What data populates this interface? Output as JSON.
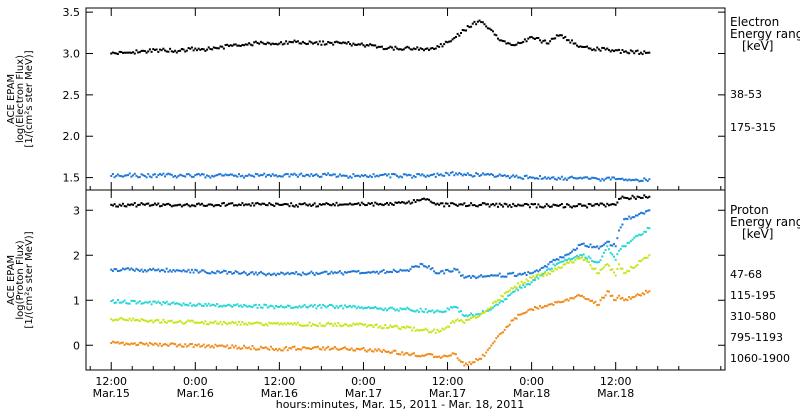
{
  "chart_data": [
    {
      "type": "scatter",
      "panel": "electron",
      "ylabel_lines": [
        "ACE EPAM",
        "log(Electron Flux)",
        "[1/(cm²s ster MeV)]"
      ],
      "legend_title_lines": [
        "Electron",
        "Energy ranges",
        "[keV]"
      ],
      "legend_placement": "right",
      "ylim": [
        1.35,
        3.55
      ],
      "yticks": [
        1.5,
        2.0,
        2.5,
        3.0,
        3.5
      ],
      "ytick_labels": [
        "1.5",
        "2.0",
        "2.5",
        "3.0",
        "3.5"
      ],
      "series": [
        {
          "name": "38-53",
          "color": "#000000",
          "points": [
            [
              0.0,
              3.0
            ],
            [
              0.1,
              3.01
            ],
            [
              0.2,
              3.03
            ],
            [
              0.3,
              3.04
            ],
            [
              0.4,
              3.03
            ],
            [
              0.5,
              3.06
            ],
            [
              0.6,
              3.05
            ],
            [
              0.7,
              3.09
            ],
            [
              0.8,
              3.11
            ],
            [
              0.9,
              3.13
            ],
            [
              1.0,
              3.12
            ],
            [
              1.1,
              3.14
            ],
            [
              1.2,
              3.12
            ],
            [
              1.3,
              3.13
            ],
            [
              1.4,
              3.12
            ],
            [
              1.5,
              3.1
            ],
            [
              1.6,
              3.08
            ],
            [
              1.7,
              3.06
            ],
            [
              1.8,
              3.06
            ],
            [
              1.9,
              3.06
            ],
            [
              1.95,
              3.08
            ],
            [
              2.05,
              3.2
            ],
            [
              2.1,
              3.28
            ],
            [
              2.15,
              3.36
            ],
            [
              2.2,
              3.38
            ],
            [
              2.25,
              3.3
            ],
            [
              2.3,
              3.18
            ],
            [
              2.35,
              3.12
            ],
            [
              2.4,
              3.1
            ],
            [
              2.45,
              3.14
            ],
            [
              2.5,
              3.2
            ],
            [
              2.55,
              3.16
            ],
            [
              2.6,
              3.12
            ],
            [
              2.65,
              3.22
            ],
            [
              2.7,
              3.2
            ],
            [
              2.75,
              3.12
            ],
            [
              2.8,
              3.08
            ],
            [
              2.85,
              3.06
            ],
            [
              2.9,
              3.05
            ],
            [
              3.0,
              3.04
            ],
            [
              3.05,
              3.02
            ],
            [
              3.2,
              3.01
            ]
          ]
        },
        {
          "name": "175-315",
          "color": "#1f78d6",
          "points": [
            [
              0.0,
              1.52
            ],
            [
              0.1,
              1.53
            ],
            [
              0.2,
              1.52
            ],
            [
              0.3,
              1.53
            ],
            [
              0.4,
              1.52
            ],
            [
              0.5,
              1.53
            ],
            [
              0.6,
              1.52
            ],
            [
              0.7,
              1.53
            ],
            [
              0.8,
              1.52
            ],
            [
              0.9,
              1.53
            ],
            [
              1.0,
              1.52
            ],
            [
              1.1,
              1.53
            ],
            [
              1.2,
              1.52
            ],
            [
              1.3,
              1.53
            ],
            [
              1.4,
              1.52
            ],
            [
              1.5,
              1.52
            ],
            [
              1.6,
              1.53
            ],
            [
              1.7,
              1.52
            ],
            [
              1.8,
              1.52
            ],
            [
              1.9,
              1.53
            ],
            [
              1.95,
              1.53
            ],
            [
              2.05,
              1.55
            ],
            [
              2.1,
              1.54
            ],
            [
              2.2,
              1.53
            ],
            [
              2.3,
              1.52
            ],
            [
              2.4,
              1.51
            ],
            [
              2.5,
              1.5
            ],
            [
              2.6,
              1.5
            ],
            [
              2.7,
              1.49
            ],
            [
              2.8,
              1.49
            ],
            [
              2.9,
              1.48
            ],
            [
              3.0,
              1.48
            ],
            [
              3.05,
              1.47
            ],
            [
              3.2,
              1.48
            ]
          ]
        }
      ]
    },
    {
      "type": "scatter",
      "panel": "proton",
      "ylabel_lines": [
        "ACE EPAM",
        "log(Proton Flux)",
        "[1/(cm²s ster MeV)]"
      ],
      "legend_title_lines": [
        "Proton",
        "Energy ranges",
        "[keV]"
      ],
      "legend_placement": "right",
      "ylim": [
        -0.55,
        3.45
      ],
      "yticks": [
        0,
        1,
        2,
        3
      ],
      "ytick_labels": [
        "0",
        "1",
        "2",
        "3"
      ],
      "series": [
        {
          "name": "47-68",
          "color": "#000000",
          "points": [
            [
              0.0,
              3.12
            ],
            [
              0.2,
              3.12
            ],
            [
              0.4,
              3.12
            ],
            [
              0.6,
              3.12
            ],
            [
              0.8,
              3.13
            ],
            [
              1.0,
              3.12
            ],
            [
              1.2,
              3.12
            ],
            [
              1.4,
              3.13
            ],
            [
              1.6,
              3.14
            ],
            [
              1.75,
              3.15
            ],
            [
              1.85,
              3.25
            ],
            [
              1.95,
              3.12
            ],
            [
              2.05,
              3.12
            ],
            [
              2.2,
              3.12
            ],
            [
              2.4,
              3.1
            ],
            [
              2.6,
              3.1
            ],
            [
              2.8,
              3.1
            ],
            [
              3.0,
              3.12
            ],
            [
              3.02,
              3.25
            ],
            [
              3.05,
              3.28
            ],
            [
              3.2,
              3.3
            ]
          ]
        },
        {
          "name": "115-195",
          "color": "#1f78d6",
          "points": [
            [
              0.0,
              1.68
            ],
            [
              0.2,
              1.67
            ],
            [
              0.4,
              1.66
            ],
            [
              0.6,
              1.63
            ],
            [
              0.8,
              1.6
            ],
            [
              1.0,
              1.58
            ],
            [
              1.2,
              1.6
            ],
            [
              1.4,
              1.61
            ],
            [
              1.6,
              1.63
            ],
            [
              1.75,
              1.66
            ],
            [
              1.85,
              1.8
            ],
            [
              1.95,
              1.6
            ],
            [
              2.05,
              1.68
            ],
            [
              2.1,
              1.5
            ],
            [
              2.3,
              1.55
            ],
            [
              2.5,
              1.6
            ],
            [
              2.6,
              1.8
            ],
            [
              2.7,
              2.0
            ],
            [
              2.8,
              2.25
            ],
            [
              2.9,
              2.15
            ],
            [
              2.95,
              2.3
            ],
            [
              3.0,
              2.2
            ],
            [
              3.02,
              2.55
            ],
            [
              3.05,
              2.8
            ],
            [
              3.2,
              3.0
            ]
          ]
        },
        {
          "name": "310-580",
          "color": "#27d6d6",
          "points": [
            [
              0.0,
              0.98
            ],
            [
              0.2,
              0.95
            ],
            [
              0.4,
              0.92
            ],
            [
              0.6,
              0.9
            ],
            [
              0.8,
              0.88
            ],
            [
              1.0,
              0.85
            ],
            [
              1.2,
              0.86
            ],
            [
              1.4,
              0.85
            ],
            [
              1.6,
              0.82
            ],
            [
              1.75,
              0.8
            ],
            [
              1.95,
              0.75
            ],
            [
              2.05,
              0.85
            ],
            [
              2.1,
              0.65
            ],
            [
              2.2,
              0.7
            ],
            [
              2.3,
              0.9
            ],
            [
              2.4,
              1.2
            ],
            [
              2.5,
              1.4
            ],
            [
              2.6,
              1.7
            ],
            [
              2.7,
              1.9
            ],
            [
              2.8,
              2.0
            ],
            [
              2.9,
              1.85
            ],
            [
              2.95,
              2.2
            ],
            [
              3.0,
              1.9
            ],
            [
              3.02,
              2.1
            ],
            [
              3.05,
              2.2
            ],
            [
              3.2,
              2.6
            ]
          ]
        },
        {
          "name": "795-1193",
          "color": "#c6e51a",
          "points": [
            [
              0.0,
              0.58
            ],
            [
              0.2,
              0.55
            ],
            [
              0.4,
              0.52
            ],
            [
              0.6,
              0.5
            ],
            [
              0.8,
              0.48
            ],
            [
              1.0,
              0.46
            ],
            [
              1.2,
              0.47
            ],
            [
              1.4,
              0.46
            ],
            [
              1.6,
              0.42
            ],
            [
              1.75,
              0.38
            ],
            [
              1.95,
              0.3
            ],
            [
              2.05,
              0.55
            ],
            [
              2.1,
              0.5
            ],
            [
              2.2,
              0.7
            ],
            [
              2.3,
              1.0
            ],
            [
              2.4,
              1.3
            ],
            [
              2.5,
              1.5
            ],
            [
              2.6,
              1.6
            ],
            [
              2.7,
              1.8
            ],
            [
              2.8,
              1.95
            ],
            [
              2.9,
              1.6
            ],
            [
              2.95,
              1.8
            ],
            [
              3.0,
              1.55
            ],
            [
              3.02,
              1.8
            ],
            [
              3.05,
              1.6
            ],
            [
              3.2,
              2.0
            ]
          ]
        },
        {
          "name": "1060-1900",
          "color": "#f08c1a",
          "points": [
            [
              0.0,
              0.05
            ],
            [
              0.2,
              0.02
            ],
            [
              0.4,
              0.0
            ],
            [
              0.6,
              -0.02
            ],
            [
              0.8,
              -0.05
            ],
            [
              1.0,
              -0.08
            ],
            [
              1.2,
              -0.06
            ],
            [
              1.4,
              -0.08
            ],
            [
              1.6,
              -0.12
            ],
            [
              1.75,
              -0.18
            ],
            [
              1.95,
              -0.25
            ],
            [
              2.05,
              -0.2
            ],
            [
              2.1,
              -0.45
            ],
            [
              2.2,
              -0.3
            ],
            [
              2.3,
              0.2
            ],
            [
              2.4,
              0.6
            ],
            [
              2.5,
              0.8
            ],
            [
              2.6,
              0.9
            ],
            [
              2.7,
              1.0
            ],
            [
              2.8,
              1.1
            ],
            [
              2.9,
              0.9
            ],
            [
              2.95,
              1.2
            ],
            [
              3.0,
              1.0
            ],
            [
              3.02,
              1.1
            ],
            [
              3.05,
              1.0
            ],
            [
              3.2,
              1.2
            ]
          ]
        }
      ]
    }
  ],
  "x_axis": {
    "xlim": [
      -0.15,
      3.65
    ],
    "ticks": [
      {
        "x": 0.0,
        "time": "12:00",
        "date": "Mar.15"
      },
      {
        "x": 0.5,
        "time": "0:00",
        "date": "Mar.16"
      },
      {
        "x": 1.0,
        "time": "12:00",
        "date": "Mar.16"
      },
      {
        "x": 1.5,
        "time": "0:00",
        "date": "Mar.17"
      },
      {
        "x": 2.0,
        "time": "12:00",
        "date": "Mar.17"
      },
      {
        "x": 2.5,
        "time": "0:00",
        "date": "Mar.18"
      },
      {
        "x": 3.0,
        "time": "12:00",
        "date": "Mar.18"
      }
    ],
    "label": "hours:minutes, Mar. 15, 2011 - Mar. 18, 2011"
  }
}
